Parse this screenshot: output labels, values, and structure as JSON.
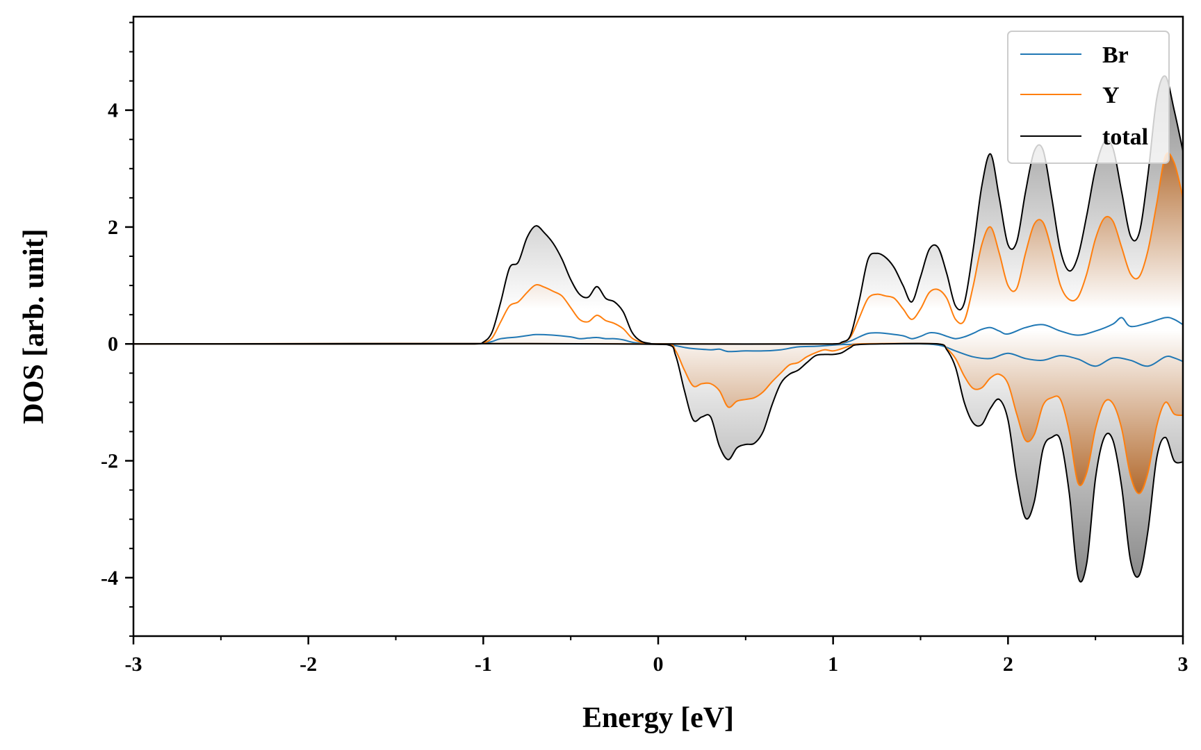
{
  "chart_data": {
    "type": "line",
    "title": "",
    "xlabel": "Energy [eV]",
    "ylabel": "DOS [arb. unit]",
    "xlim": [
      -3,
      3
    ],
    "ylim": [
      -5,
      5.6
    ],
    "xticks": [
      -3,
      -2,
      -1,
      0,
      1,
      2,
      3
    ],
    "yticks": [
      -4,
      -2,
      0,
      2,
      4
    ],
    "xtick_labels": [
      "-3",
      "-2",
      "-1",
      "0",
      "1",
      "2",
      "3"
    ],
    "ytick_labels": [
      "-4",
      "-2",
      "0",
      "2",
      "4"
    ],
    "grid": false,
    "legend_position": "top-right",
    "fill_between_zero": true,
    "colors": {
      "Br": "#1f77b4",
      "Y": "#ff7f0e",
      "total": "#000000",
      "total_fill": "#9a9a9a",
      "y_fill": "#c0763a"
    },
    "series": [
      {
        "name": "Br",
        "spin_up": {
          "x": [
            -3.0,
            -1.05,
            -1.0,
            -0.95,
            -0.9,
            -0.8,
            -0.7,
            -0.6,
            -0.5,
            -0.45,
            -0.4,
            -0.35,
            -0.3,
            -0.25,
            -0.2,
            -0.15,
            -0.1,
            -0.05,
            0.0,
            1.0,
            1.05,
            1.1,
            1.15,
            1.2,
            1.25,
            1.3,
            1.4,
            1.45,
            1.5,
            1.55,
            1.6,
            1.65,
            1.7,
            1.75,
            1.8,
            1.85,
            1.9,
            1.95,
            2.0,
            2.1,
            2.2,
            2.3,
            2.4,
            2.5,
            2.6,
            2.65,
            2.7,
            2.8,
            2.9,
            2.95,
            3.0
          ],
          "y": [
            0.0,
            0.0,
            0.01,
            0.04,
            0.09,
            0.12,
            0.16,
            0.15,
            0.12,
            0.09,
            0.1,
            0.11,
            0.09,
            0.09,
            0.07,
            0.03,
            0.01,
            0.0,
            0.0,
            0.0,
            0.01,
            0.05,
            0.12,
            0.18,
            0.19,
            0.18,
            0.14,
            0.09,
            0.13,
            0.19,
            0.18,
            0.13,
            0.09,
            0.12,
            0.18,
            0.25,
            0.28,
            0.22,
            0.17,
            0.28,
            0.33,
            0.22,
            0.15,
            0.22,
            0.34,
            0.45,
            0.3,
            0.36,
            0.45,
            0.42,
            0.33
          ]
        },
        "spin_down": {
          "x": [
            -3.0,
            0.0,
            0.05,
            0.1,
            0.15,
            0.2,
            0.3,
            0.35,
            0.4,
            0.5,
            0.6,
            0.7,
            0.8,
            0.9,
            1.0,
            1.05,
            1.1,
            1.15,
            1.5,
            1.6,
            1.65,
            1.7,
            1.8,
            1.9,
            2.0,
            2.1,
            2.2,
            2.3,
            2.4,
            2.5,
            2.6,
            2.7,
            2.8,
            2.9,
            2.95,
            3.0
          ],
          "y": [
            0.0,
            0.0,
            -0.01,
            -0.03,
            -0.06,
            -0.08,
            -0.1,
            -0.09,
            -0.13,
            -0.12,
            -0.12,
            -0.1,
            -0.05,
            -0.04,
            -0.02,
            -0.01,
            -0.01,
            0.0,
            0.0,
            -0.02,
            -0.06,
            -0.12,
            -0.22,
            -0.25,
            -0.16,
            -0.25,
            -0.28,
            -0.2,
            -0.26,
            -0.38,
            -0.24,
            -0.28,
            -0.38,
            -0.22,
            -0.24,
            -0.3
          ]
        }
      },
      {
        "name": "Y",
        "spin_up": {
          "x": [
            -3.0,
            -1.05,
            -1.0,
            -0.95,
            -0.9,
            -0.85,
            -0.8,
            -0.75,
            -0.7,
            -0.65,
            -0.6,
            -0.55,
            -0.5,
            -0.45,
            -0.4,
            -0.35,
            -0.3,
            -0.25,
            -0.2,
            -0.15,
            -0.1,
            -0.05,
            0.0,
            1.0,
            1.05,
            1.1,
            1.15,
            1.2,
            1.25,
            1.3,
            1.35,
            1.4,
            1.45,
            1.5,
            1.55,
            1.6,
            1.65,
            1.7,
            1.75,
            1.8,
            1.85,
            1.9,
            1.95,
            2.0,
            2.05,
            2.1,
            2.15,
            2.2,
            2.25,
            2.3,
            2.35,
            2.4,
            2.45,
            2.5,
            2.55,
            2.6,
            2.65,
            2.7,
            2.75,
            2.8,
            2.85,
            2.9,
            2.95,
            3.0
          ],
          "y": [
            0.0,
            0.0,
            0.02,
            0.1,
            0.38,
            0.65,
            0.72,
            0.88,
            1.01,
            0.97,
            0.9,
            0.82,
            0.62,
            0.42,
            0.38,
            0.49,
            0.4,
            0.35,
            0.26,
            0.1,
            0.03,
            0.0,
            0.0,
            0.0,
            0.02,
            0.12,
            0.45,
            0.78,
            0.85,
            0.82,
            0.78,
            0.6,
            0.42,
            0.6,
            0.88,
            0.93,
            0.78,
            0.42,
            0.4,
            0.98,
            1.7,
            2.0,
            1.55,
            1.0,
            0.95,
            1.55,
            2.05,
            2.08,
            1.6,
            1.0,
            0.76,
            0.8,
            1.2,
            1.8,
            2.15,
            2.1,
            1.65,
            1.2,
            1.15,
            1.6,
            2.4,
            3.22,
            3.1,
            2.5
          ]
        },
        "spin_down": {
          "x": [
            -3.0,
            0.05,
            0.1,
            0.15,
            0.2,
            0.25,
            0.3,
            0.35,
            0.4,
            0.45,
            0.5,
            0.55,
            0.6,
            0.65,
            0.7,
            0.75,
            0.8,
            0.85,
            0.9,
            0.95,
            1.0,
            1.05,
            1.1,
            1.15,
            1.6,
            1.65,
            1.7,
            1.75,
            1.8,
            1.85,
            1.9,
            1.95,
            2.0,
            2.05,
            2.1,
            2.15,
            2.2,
            2.25,
            2.3,
            2.35,
            2.4,
            2.45,
            2.5,
            2.55,
            2.6,
            2.65,
            2.7,
            2.75,
            2.8,
            2.85,
            2.9,
            2.95,
            3.0
          ],
          "y": [
            0.0,
            0.0,
            -0.12,
            -0.45,
            -0.72,
            -0.68,
            -0.68,
            -0.8,
            -1.08,
            -0.98,
            -0.95,
            -0.92,
            -0.82,
            -0.65,
            -0.5,
            -0.36,
            -0.32,
            -0.22,
            -0.15,
            -0.1,
            -0.12,
            -0.08,
            -0.03,
            0.0,
            0.0,
            -0.08,
            -0.25,
            -0.55,
            -0.76,
            -0.75,
            -0.58,
            -0.52,
            -0.68,
            -1.2,
            -1.65,
            -1.55,
            -1.05,
            -0.92,
            -0.95,
            -1.5,
            -2.38,
            -2.2,
            -1.45,
            -1.0,
            -1.02,
            -1.45,
            -2.25,
            -2.56,
            -2.2,
            -1.4,
            -1.0,
            -1.2,
            -1.22
          ]
        }
      },
      {
        "name": "total",
        "spin_up": {
          "x": [
            -3.0,
            -1.05,
            -1.0,
            -0.95,
            -0.9,
            -0.85,
            -0.8,
            -0.75,
            -0.7,
            -0.65,
            -0.6,
            -0.55,
            -0.5,
            -0.45,
            -0.4,
            -0.35,
            -0.3,
            -0.25,
            -0.2,
            -0.15,
            -0.1,
            -0.05,
            0.0,
            1.0,
            1.05,
            1.1,
            1.15,
            1.2,
            1.25,
            1.3,
            1.35,
            1.4,
            1.45,
            1.5,
            1.55,
            1.6,
            1.65,
            1.7,
            1.75,
            1.8,
            1.85,
            1.9,
            1.95,
            2.0,
            2.05,
            2.1,
            2.15,
            2.2,
            2.25,
            2.3,
            2.35,
            2.4,
            2.45,
            2.5,
            2.55,
            2.6,
            2.65,
            2.7,
            2.75,
            2.8,
            2.85,
            2.9,
            2.95,
            3.0
          ],
          "y": [
            0.0,
            0.0,
            0.03,
            0.2,
            0.72,
            1.3,
            1.4,
            1.82,
            2.02,
            1.9,
            1.72,
            1.45,
            1.1,
            0.85,
            0.8,
            0.98,
            0.78,
            0.72,
            0.55,
            0.2,
            0.05,
            0.01,
            0.0,
            0.0,
            0.03,
            0.15,
            0.75,
            1.45,
            1.55,
            1.48,
            1.3,
            1.0,
            0.72,
            1.15,
            1.62,
            1.65,
            1.2,
            0.65,
            0.7,
            1.6,
            2.7,
            3.25,
            2.5,
            1.7,
            1.75,
            2.6,
            3.3,
            3.32,
            2.5,
            1.6,
            1.25,
            1.5,
            2.2,
            3.0,
            3.45,
            3.35,
            2.6,
            1.85,
            1.9,
            2.9,
            4.2,
            4.58,
            4.0,
            3.3
          ]
        },
        "spin_down": {
          "x": [
            -3.0,
            0.05,
            0.1,
            0.15,
            0.2,
            0.25,
            0.3,
            0.35,
            0.4,
            0.45,
            0.5,
            0.55,
            0.6,
            0.65,
            0.7,
            0.75,
            0.8,
            0.85,
            0.9,
            0.95,
            1.0,
            1.05,
            1.1,
            1.15,
            1.6,
            1.65,
            1.7,
            1.75,
            1.8,
            1.85,
            1.9,
            1.95,
            2.0,
            2.05,
            2.1,
            2.15,
            2.2,
            2.25,
            2.3,
            2.35,
            2.4,
            2.45,
            2.5,
            2.55,
            2.6,
            2.65,
            2.7,
            2.75,
            2.8,
            2.85,
            2.9,
            2.95,
            3.0
          ],
          "y": [
            0.0,
            -0.01,
            -0.2,
            -0.8,
            -1.3,
            -1.25,
            -1.25,
            -1.75,
            -1.98,
            -1.78,
            -1.72,
            -1.7,
            -1.5,
            -1.05,
            -0.68,
            -0.52,
            -0.45,
            -0.32,
            -0.2,
            -0.18,
            -0.18,
            -0.15,
            -0.06,
            -0.01,
            0.0,
            -0.1,
            -0.4,
            -1.0,
            -1.35,
            -1.38,
            -1.1,
            -0.95,
            -1.3,
            -2.3,
            -2.98,
            -2.7,
            -1.8,
            -1.6,
            -1.65,
            -2.55,
            -3.98,
            -3.75,
            -2.3,
            -1.6,
            -1.65,
            -2.45,
            -3.7,
            -3.96,
            -3.2,
            -1.95,
            -1.6,
            -2.0,
            -2.02
          ]
        }
      }
    ]
  }
}
